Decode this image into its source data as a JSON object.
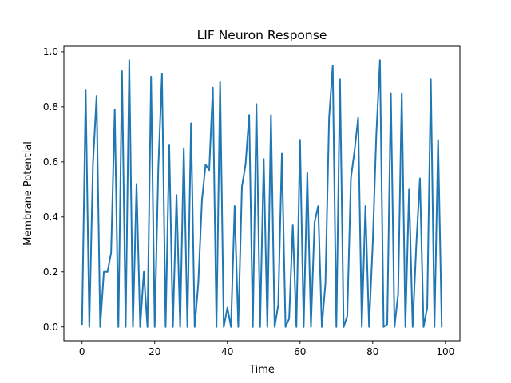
{
  "chart_data": {
    "type": "line",
    "title": "LIF Neuron Response",
    "xlabel": "Time",
    "ylabel": "Membrane Potential",
    "xlim": [
      -5,
      104
    ],
    "ylim": [
      -0.05,
      1.02
    ],
    "xticks": [
      0,
      20,
      40,
      60,
      80,
      100
    ],
    "yticks": [
      0.0,
      0.2,
      0.4,
      0.6,
      0.8,
      1.0
    ],
    "xtick_labels": [
      "0",
      "20",
      "40",
      "60",
      "80",
      "100"
    ],
    "ytick_labels": [
      "0.0",
      "0.2",
      "0.4",
      "0.6",
      "0.8",
      "1.0"
    ],
    "grid": false,
    "series": [
      {
        "color": "#1f77b4",
        "x": [
          0,
          1,
          2,
          3,
          4,
          5,
          6,
          7,
          8,
          9,
          10,
          11,
          12,
          13,
          14,
          15,
          16,
          17,
          18,
          19,
          20,
          21,
          22,
          23,
          24,
          25,
          26,
          27,
          28,
          29,
          30,
          31,
          32,
          33,
          34,
          35,
          36,
          37,
          38,
          39,
          40,
          41,
          42,
          43,
          44,
          45,
          46,
          47,
          48,
          49,
          50,
          51,
          52,
          53,
          54,
          55,
          56,
          57,
          58,
          59,
          60,
          61,
          62,
          63,
          64,
          65,
          66,
          67,
          68,
          69,
          70,
          71,
          72,
          73,
          74,
          75,
          76,
          77,
          78,
          79,
          80,
          81,
          82,
          83,
          84,
          85,
          86,
          87,
          88,
          89,
          90,
          91,
          92,
          93,
          94,
          95,
          96,
          97,
          98,
          99
        ],
        "y": [
          0.01,
          0.86,
          0.0,
          0.59,
          0.84,
          0.0,
          0.2,
          0.2,
          0.27,
          0.79,
          0.0,
          0.93,
          0.0,
          0.97,
          0.0,
          0.52,
          0.0,
          0.2,
          0.0,
          0.91,
          0.0,
          0.58,
          0.92,
          0.0,
          0.66,
          0.0,
          0.48,
          0.0,
          0.65,
          0.0,
          0.74,
          0.0,
          0.16,
          0.46,
          0.59,
          0.57,
          0.87,
          0.0,
          0.89,
          0.0,
          0.07,
          0.0,
          0.44,
          0.0,
          0.51,
          0.59,
          0.77,
          0.0,
          0.81,
          0.0,
          0.61,
          0.0,
          0.77,
          0.0,
          0.08,
          0.63,
          0.0,
          0.03,
          0.37,
          0.0,
          0.68,
          0.0,
          0.56,
          0.0,
          0.38,
          0.44,
          0.0,
          0.16,
          0.76,
          0.95,
          0.0,
          0.9,
          0.0,
          0.04,
          0.54,
          0.64,
          0.76,
          0.0,
          0.44,
          0.0,
          0.3,
          0.7,
          0.97,
          0.0,
          0.01,
          0.85,
          0.0,
          0.12,
          0.85,
          0.0,
          0.5,
          0.0,
          0.3,
          0.54,
          0.0,
          0.07,
          0.9,
          0.0,
          0.68,
          0.0
        ]
      }
    ]
  }
}
